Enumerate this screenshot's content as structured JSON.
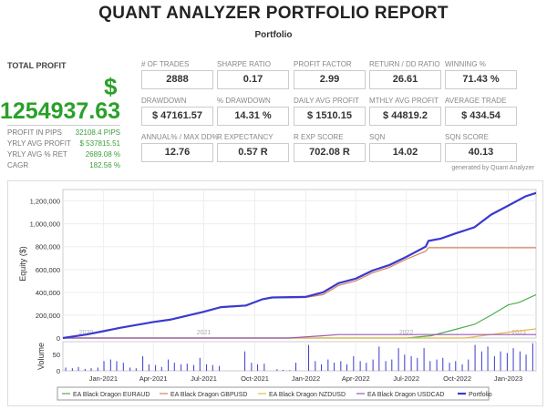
{
  "header": {
    "title": "QUANT ANALYZER PORTFOLIO REPORT",
    "subtitle": "Portfolio"
  },
  "total_profit": {
    "label": "TOTAL PROFIT",
    "currency": "$",
    "value": "1254937.63",
    "details": [
      {
        "label": "PROFIT IN PIPS",
        "value": "32108.4 PIPS"
      },
      {
        "label": "YRLY AVG PROFIT",
        "value": "$ 537815.51"
      },
      {
        "label": "YRLY AVG % RET",
        "value": "2689.08 %"
      },
      {
        "label": "CAGR",
        "value": "182.56 %"
      }
    ]
  },
  "metrics": [
    [
      {
        "label": "# OF TRADES",
        "value": "2888"
      },
      {
        "label": "SHARPE RATIO",
        "value": "0.17"
      },
      {
        "label": "PROFIT FACTOR",
        "value": "2.99"
      },
      {
        "label": "RETURN / DD RATIO",
        "value": "26.61"
      },
      {
        "label": "WINNING %",
        "value": "71.43 %"
      }
    ],
    [
      {
        "label": "DRAWDOWN",
        "value": "$ 47161.57"
      },
      {
        "label": "% DRAWDOWN",
        "value": "14.31 %"
      },
      {
        "label": "DAILY AVG PROFIT",
        "value": "$ 1510.15"
      },
      {
        "label": "MTHLY AVG PROFIT",
        "value": "$ 44819.2"
      },
      {
        "label": "AVERAGE TRADE",
        "value": "$ 434.54"
      }
    ],
    [
      {
        "label": "ANNUAL% / MAX DD%",
        "value": "12.76"
      },
      {
        "label": "R EXPECTANCY",
        "value": "0.57 R"
      },
      {
        "label": "R EXP SCORE",
        "value": "702.08 R"
      },
      {
        "label": "SQN",
        "value": "14.02"
      },
      {
        "label": "SQN SCORE",
        "value": "40.13"
      }
    ]
  ],
  "generated_by": "generated by Quant Analyzer",
  "colors": {
    "profit_green": "#2aa02a",
    "portfolio": "#3a3ad0",
    "euraud": "#4caf50",
    "gbpusd": "#d9825b",
    "nzdusd": "#e8b84a",
    "usdcad": "#9b59b6",
    "volume": "#3a3ad0"
  },
  "chart_data": {
    "type": "line",
    "ylabel": "Equity ($)",
    "ylim": [
      0,
      1300000
    ],
    "yticks": [
      "0",
      "200,000",
      "400,000",
      "600,000",
      "800,000",
      "1,000,000",
      "1,200,000"
    ],
    "ytick_values": [
      0,
      200000,
      400000,
      600000,
      800000,
      1000000,
      1200000
    ],
    "xlim": [
      "2020-10-20",
      "2023-02-20"
    ],
    "xticks": [
      {
        "date": "2021-01-01",
        "label": "Jan-2021"
      },
      {
        "date": "2021-04-01",
        "label": "Apr-2021"
      },
      {
        "date": "2021-07-01",
        "label": "Jul-2021"
      },
      {
        "date": "2021-10-01",
        "label": "Oct-2021"
      },
      {
        "date": "2022-01-01",
        "label": "Jan-2022"
      },
      {
        "date": "2022-04-01",
        "label": "Apr-2022"
      },
      {
        "date": "2022-07-01",
        "label": "Jul-2022"
      },
      {
        "date": "2022-10-01",
        "label": "Oct-2022"
      },
      {
        "date": "2023-01-01",
        "label": "Jan-2023"
      }
    ],
    "year_labels": [
      {
        "date": "2020-12-01",
        "label": "2020"
      },
      {
        "date": "2021-07-01",
        "label": "2021"
      },
      {
        "date": "2022-07-01",
        "label": "2022"
      },
      {
        "date": "2023-01-20",
        "label": "2023"
      }
    ],
    "grid": true,
    "legend_position": "bottom",
    "series": [
      {
        "name": "EA Black Dragon EURAUD",
        "color": "#4caf50",
        "points": [
          [
            "2020-10-20",
            0
          ],
          [
            "2022-07-01",
            0
          ],
          [
            "2022-08-15",
            20000
          ],
          [
            "2022-10-01",
            80000
          ],
          [
            "2022-11-01",
            120000
          ],
          [
            "2022-12-01",
            200000
          ],
          [
            "2023-01-01",
            290000
          ],
          [
            "2023-01-20",
            310000
          ],
          [
            "2023-02-20",
            380000
          ]
        ]
      },
      {
        "name": "EA Black Dragon GBPUSD",
        "color": "#d9825b",
        "points": [
          [
            "2020-10-20",
            0
          ],
          [
            "2020-12-01",
            30000
          ],
          [
            "2021-01-01",
            60000
          ],
          [
            "2021-02-01",
            90000
          ],
          [
            "2021-04-01",
            140000
          ],
          [
            "2021-05-01",
            160000
          ],
          [
            "2021-07-01",
            230000
          ],
          [
            "2021-08-01",
            270000
          ],
          [
            "2021-09-15",
            282000
          ],
          [
            "2021-10-15",
            338000
          ],
          [
            "2021-11-01",
            352000
          ],
          [
            "2021-12-31",
            355000
          ],
          [
            "2022-02-01",
            380000
          ],
          [
            "2022-03-01",
            460000
          ],
          [
            "2022-04-01",
            500000
          ],
          [
            "2022-05-01",
            570000
          ],
          [
            "2022-06-01",
            620000
          ],
          [
            "2022-07-01",
            690000
          ],
          [
            "2022-08-05",
            760000
          ],
          [
            "2022-08-10",
            790000
          ],
          [
            "2023-02-20",
            790000
          ]
        ]
      },
      {
        "name": "EA Black Dragon NZDUSD",
        "color": "#e8b84a",
        "points": [
          [
            "2020-10-20",
            0
          ],
          [
            "2022-10-15",
            0
          ],
          [
            "2022-12-01",
            30000
          ],
          [
            "2023-01-15",
            60000
          ],
          [
            "2023-02-20",
            80000
          ]
        ]
      },
      {
        "name": "EA Black Dragon USDCAD",
        "color": "#9b59b6",
        "points": [
          [
            "2020-10-20",
            0
          ],
          [
            "2021-12-01",
            0
          ],
          [
            "2022-02-01",
            20000
          ],
          [
            "2022-03-01",
            30000
          ],
          [
            "2023-02-20",
            30000
          ]
        ]
      },
      {
        "name": "Portfolio",
        "color": "#3a3ad0",
        "points": [
          [
            "2020-10-20",
            0
          ],
          [
            "2020-12-01",
            30000
          ],
          [
            "2021-01-01",
            60000
          ],
          [
            "2021-02-01",
            90000
          ],
          [
            "2021-04-01",
            140000
          ],
          [
            "2021-05-01",
            160000
          ],
          [
            "2021-07-01",
            230000
          ],
          [
            "2021-08-01",
            270000
          ],
          [
            "2021-09-15",
            285000
          ],
          [
            "2021-10-15",
            340000
          ],
          [
            "2021-11-01",
            355000
          ],
          [
            "2021-12-31",
            360000
          ],
          [
            "2022-02-01",
            400000
          ],
          [
            "2022-03-01",
            480000
          ],
          [
            "2022-04-01",
            520000
          ],
          [
            "2022-05-01",
            590000
          ],
          [
            "2022-06-01",
            640000
          ],
          [
            "2022-07-01",
            710000
          ],
          [
            "2022-08-05",
            800000
          ],
          [
            "2022-08-10",
            850000
          ],
          [
            "2022-09-01",
            870000
          ],
          [
            "2022-10-01",
            920000
          ],
          [
            "2022-11-01",
            970000
          ],
          [
            "2022-12-01",
            1080000
          ],
          [
            "2023-01-01",
            1160000
          ],
          [
            "2023-02-01",
            1240000
          ],
          [
            "2023-02-20",
            1270000
          ]
        ]
      }
    ],
    "volume": {
      "ylabel": "Volume",
      "yticks": [
        "0",
        "50"
      ],
      "ytick_values": [
        0,
        50
      ],
      "ylim": [
        0,
        90
      ],
      "start": "2020-10-20",
      "end": "2023-02-20",
      "values": [
        10,
        8,
        12,
        6,
        8,
        10,
        30,
        35,
        30,
        25,
        10,
        8,
        45,
        20,
        18,
        12,
        35,
        25,
        20,
        22,
        18,
        40,
        20,
        18,
        15,
        0,
        0,
        0,
        60,
        25,
        20,
        22,
        0,
        5,
        3,
        2,
        25,
        0,
        80,
        30,
        20,
        35,
        25,
        30,
        20,
        45,
        30,
        25,
        35,
        75,
        30,
        35,
        70,
        50,
        45,
        40,
        70,
        30,
        35,
        40,
        25,
        30,
        20,
        35,
        80,
        60,
        75,
        45,
        60,
        55,
        70,
        60,
        50,
        85
      ]
    }
  }
}
